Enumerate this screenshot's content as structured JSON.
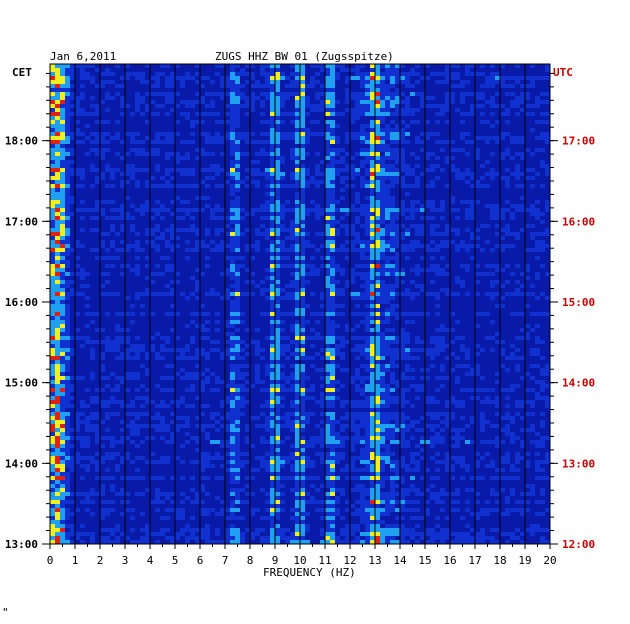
{
  "header": {
    "date": "Jan 6,2011",
    "station": "ZUGS HHZ BW 01 (Zugsspitze)"
  },
  "axes": {
    "left_zone": "CET",
    "right_zone": "UTC",
    "xlabel": "FREQUENCY (HZ)"
  },
  "footer": {
    "mark": "\""
  },
  "colors": {
    "background": "#0a1aa8",
    "low": "#1030d0",
    "mid": "#20a0f0",
    "high": "#f0f020",
    "peak": "#e02010",
    "utc_text": "#cc0000"
  },
  "chart_data": {
    "type": "heatmap",
    "title": "ZUGS HHZ BW 01 (Zugsspitze)",
    "date": "Jan 6,2011",
    "xlabel": "FREQUENCY (HZ)",
    "x_ticks": [
      "0",
      "1",
      "2",
      "3",
      "4",
      "5",
      "6",
      "7",
      "8",
      "9",
      "10",
      "11",
      "12",
      "13",
      "14",
      "15",
      "16",
      "17",
      "18",
      "19",
      "20"
    ],
    "xlim": [
      0,
      20
    ],
    "y_ticks_cet": [
      "13:00",
      "14:00",
      "15:00",
      "16:00",
      "17:00",
      "18:00"
    ],
    "y_ticks_utc": [
      "12:00",
      "13:00",
      "14:00",
      "15:00",
      "16:00",
      "17:00"
    ],
    "ylim_cet_hours": [
      13.0,
      18.95
    ],
    "bands": [
      {
        "freq": 0.3,
        "strength": 0.95,
        "note": "strong microseism band"
      },
      {
        "freq": 7.4,
        "strength": 0.45
      },
      {
        "freq": 9.0,
        "strength": 0.7
      },
      {
        "freq": 10.0,
        "strength": 0.65
      },
      {
        "freq": 11.2,
        "strength": 0.6
      },
      {
        "freq": 13.0,
        "strength": 0.6
      }
    ],
    "grid": true
  }
}
